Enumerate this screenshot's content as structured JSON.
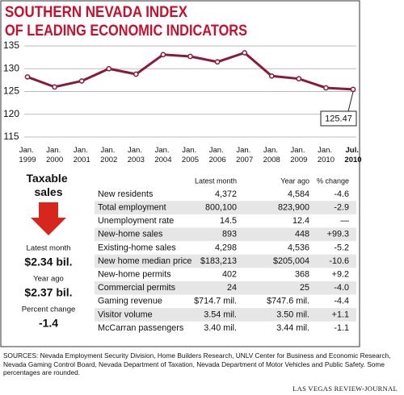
{
  "chart_data": {
    "type": "line",
    "title": [
      "SOUTHERN NEVADA INDEX",
      "OF LEADING ECONOMIC INDICATORS"
    ],
    "categories": [
      "Jan. 1999",
      "Jan. 2000",
      "Jan. 2001",
      "Jan. 2002",
      "Jan. 2003",
      "Jan. 2004",
      "Jan. 2005",
      "Jan. 2006",
      "Jan. 2007",
      "Jan. 2008",
      "Jan. 2009",
      "Jan. 2010",
      "Jul. 2010"
    ],
    "values": [
      128.2,
      126.0,
      127.3,
      130.0,
      128.8,
      133.1,
      132.7,
      131.5,
      133.5,
      128.4,
      127.8,
      125.8,
      125.47
    ],
    "color": "#8b1a3a",
    "ylim": [
      115,
      135
    ],
    "yticks": [
      115,
      120,
      125,
      130,
      135
    ],
    "grid": true,
    "callout": 12
  },
  "taxable_sales": {
    "title": "Taxable sales",
    "items": [
      {
        "label": "Latest month",
        "value": "$2.34 bil."
      },
      {
        "label": "Year ago",
        "value": "$2.37 bil."
      },
      {
        "label": "Percent change",
        "value": "-1.4"
      }
    ]
  },
  "table": {
    "columns": [
      "Latest month",
      "Year ago",
      "% change"
    ],
    "rows": [
      [
        "New residents",
        "4,372",
        "4,584",
        "-4.6"
      ],
      [
        "Total employment",
        "800,100",
        "823,900",
        "-2.9"
      ],
      [
        "Unemployment rate",
        "14.5",
        "12.4",
        "—"
      ],
      [
        "New-home sales",
        "893",
        "448",
        "+99.3"
      ],
      [
        "Existing-home sales",
        "4,298",
        "4,536",
        "-5.2"
      ],
      [
        "New home median price",
        "$183,213",
        "$205,004",
        "-10.6"
      ],
      [
        "New-home permits",
        "402",
        "368",
        "+9.2"
      ],
      [
        "Commercial permits",
        "24",
        "25",
        "-4.0"
      ],
      [
        "Gaming revenue",
        "$714.7 mil.",
        "$747.6 mil.",
        "-4.4"
      ],
      [
        "Visitor volume",
        "3.54 mil.",
        "3.50 mil.",
        "+1.1"
      ],
      [
        "McCarran passengers",
        "3.40 mil.",
        "3.44 mil.",
        "-1.1"
      ]
    ]
  },
  "sources": "SOURCES: Nevada Employment Security Division, Home Builders Research, UNLV Center for Business and Economic Research, Nevada Gaming Control Board, Nevada Department of Taxation, Nevada Department of Motor Vehicles and Public Safety. Some percentages are rounded.",
  "credit": "LAS VEGAS REVIEW-JOURNAL"
}
